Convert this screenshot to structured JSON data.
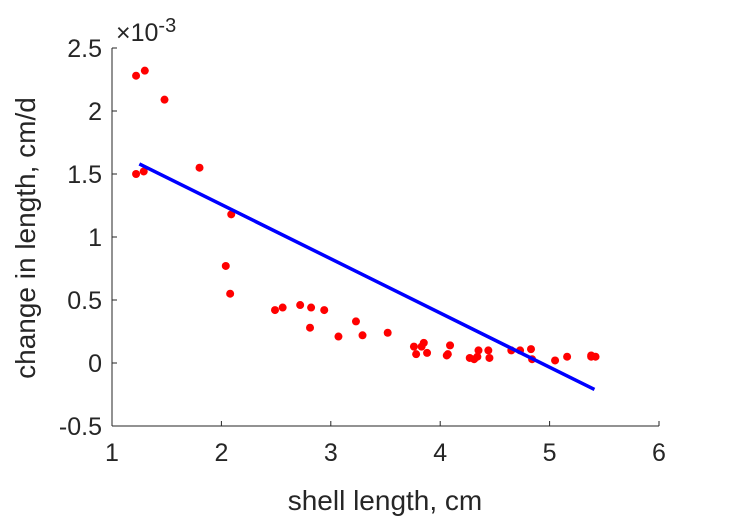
{
  "chart_data": {
    "type": "scatter",
    "title": "",
    "xlabel": "shell length, cm",
    "ylabel": "change in length, cm/d",
    "y_exponent_label": "×10",
    "y_exponent_power": "-3",
    "xlim": [
      1,
      6
    ],
    "ylim": [
      -0.5,
      2.5
    ],
    "xticks": [
      "1",
      "2",
      "3",
      "4",
      "5",
      "6"
    ],
    "yticks": [
      "-0.5",
      "0",
      "0.5",
      "1",
      "1.5",
      "2",
      "2.5"
    ],
    "grid": false,
    "legend": "none",
    "series": [
      {
        "kind": "scatter",
        "color": "#ff0000",
        "points": [
          [
            1.22,
            2.28
          ],
          [
            1.3,
            2.32
          ],
          [
            1.48,
            2.09
          ],
          [
            1.22,
            1.5
          ],
          [
            1.29,
            1.52
          ],
          [
            1.8,
            1.55
          ],
          [
            2.09,
            1.18
          ],
          [
            2.04,
            0.77
          ],
          [
            2.08,
            0.55
          ],
          [
            2.49,
            0.42
          ],
          [
            2.56,
            0.44
          ],
          [
            2.72,
            0.46
          ],
          [
            2.82,
            0.44
          ],
          [
            2.81,
            0.28
          ],
          [
            2.94,
            0.42
          ],
          [
            3.07,
            0.21
          ],
          [
            3.23,
            0.33
          ],
          [
            3.29,
            0.22
          ],
          [
            3.52,
            0.24
          ],
          [
            3.76,
            0.13
          ],
          [
            3.78,
            0.07
          ],
          [
            3.83,
            0.13
          ],
          [
            3.85,
            0.16
          ],
          [
            3.88,
            0.08
          ],
          [
            4.07,
            0.07
          ],
          [
            4.09,
            0.14
          ],
          [
            4.06,
            0.06
          ],
          [
            4.27,
            0.04
          ],
          [
            4.31,
            0.03
          ],
          [
            4.34,
            0.05
          ],
          [
            4.35,
            0.1
          ],
          [
            4.44,
            0.1
          ],
          [
            4.45,
            0.04
          ],
          [
            4.65,
            0.1
          ],
          [
            4.73,
            0.1
          ],
          [
            4.83,
            0.11
          ],
          [
            4.84,
            0.03
          ],
          [
            5.05,
            0.02
          ],
          [
            5.16,
            0.05
          ],
          [
            5.38,
            0.05
          ],
          [
            5.38,
            0.06
          ],
          [
            5.42,
            0.05
          ]
        ]
      },
      {
        "kind": "line",
        "color": "#0000ff",
        "points": [
          [
            1.25,
            1.58
          ],
          [
            5.41,
            -0.21
          ]
        ]
      }
    ]
  }
}
